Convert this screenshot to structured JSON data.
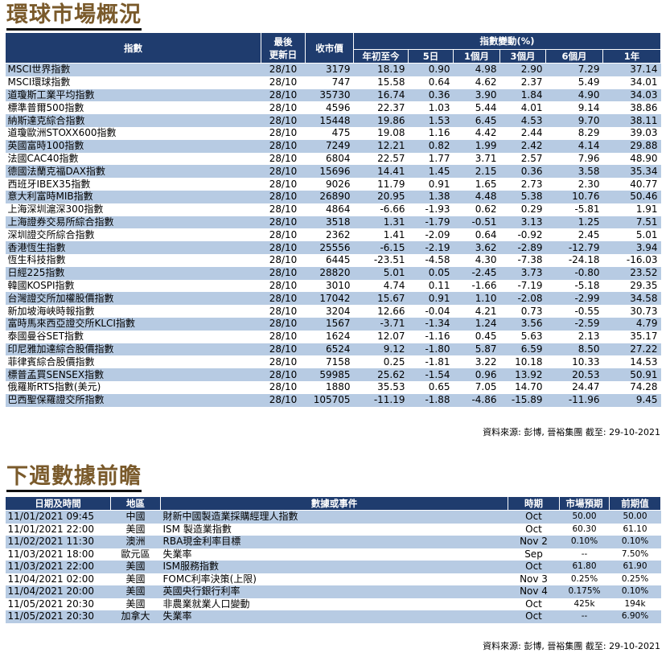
{
  "markets": {
    "title": "環球市場概況",
    "headers": {
      "index": "指數",
      "updated_line1": "最後",
      "updated_line2": "更新日",
      "close": "收市價",
      "change_group": "指數變動(%)",
      "ytd": "年初至今",
      "d5": "5日",
      "m1": "1個月",
      "m3": "3個月",
      "m6": "6個月",
      "y1": "1年"
    },
    "rows": [
      {
        "name": "MSCI世界指數",
        "date": "28/10",
        "close": "3179",
        "ytd": "18.19",
        "d5": "0.90",
        "m1": "4.98",
        "m3": "2.90",
        "m6": "7.29",
        "y1": "37.14"
      },
      {
        "name": "MSCI環球指數",
        "date": "28/10",
        "close": "747",
        "ytd": "15.58",
        "d5": "0.64",
        "m1": "4.62",
        "m3": "2.37",
        "m6": "5.49",
        "y1": "34.01"
      },
      {
        "name": "道瓊斯工業平均指數",
        "date": "28/10",
        "close": "35730",
        "ytd": "16.74",
        "d5": "0.36",
        "m1": "3.90",
        "m3": "1.84",
        "m6": "4.90",
        "y1": "34.03"
      },
      {
        "name": "標準普爾500指數",
        "date": "28/10",
        "close": "4596",
        "ytd": "22.37",
        "d5": "1.03",
        "m1": "5.44",
        "m3": "4.01",
        "m6": "9.14",
        "y1": "38.86"
      },
      {
        "name": "納斯達克綜合指數",
        "date": "28/10",
        "close": "15448",
        "ytd": "19.86",
        "d5": "1.53",
        "m1": "6.45",
        "m3": "4.53",
        "m6": "9.70",
        "y1": "38.11"
      },
      {
        "name": "道瓊歐洲STOXX600指數",
        "date": "28/10",
        "close": "475",
        "ytd": "19.08",
        "d5": "1.16",
        "m1": "4.42",
        "m3": "2.44",
        "m6": "8.29",
        "y1": "39.03"
      },
      {
        "name": "英國富時100指數",
        "date": "28/10",
        "close": "7249",
        "ytd": "12.21",
        "d5": "0.82",
        "m1": "1.99",
        "m3": "2.42",
        "m6": "4.14",
        "y1": "29.88"
      },
      {
        "name": "法國CAC40指數",
        "date": "28/10",
        "close": "6804",
        "ytd": "22.57",
        "d5": "1.77",
        "m1": "3.71",
        "m3": "2.57",
        "m6": "7.96",
        "y1": "48.90"
      },
      {
        "name": "德國法蘭克福DAX指數",
        "date": "28/10",
        "close": "15696",
        "ytd": "14.41",
        "d5": "1.45",
        "m1": "2.15",
        "m3": "0.36",
        "m6": "3.58",
        "y1": "35.34"
      },
      {
        "name": "西班牙IBEX35指數",
        "date": "28/10",
        "close": "9026",
        "ytd": "11.79",
        "d5": "0.91",
        "m1": "1.65",
        "m3": "2.73",
        "m6": "2.30",
        "y1": "40.77"
      },
      {
        "name": "意大利富時MIB指數",
        "date": "28/10",
        "close": "26890",
        "ytd": "20.95",
        "d5": "1.38",
        "m1": "4.48",
        "m3": "5.38",
        "m6": "10.76",
        "y1": "50.46"
      },
      {
        "name": "上海深圳滬深300指數",
        "date": "28/10",
        "close": "4864",
        "ytd": "-6.66",
        "d5": "-1.93",
        "m1": "0.62",
        "m3": "0.29",
        "m6": "-5.81",
        "y1": "1.91"
      },
      {
        "name": "上海證券交易所綜合指數",
        "date": "28/10",
        "close": "3518",
        "ytd": "1.31",
        "d5": "-1.79",
        "m1": "-0.51",
        "m3": "3.13",
        "m6": "1.25",
        "y1": "7.51"
      },
      {
        "name": "深圳證交所綜合指數",
        "date": "28/10",
        "close": "2362",
        "ytd": "1.41",
        "d5": "-2.09",
        "m1": "0.64",
        "m3": "-0.92",
        "m6": "2.45",
        "y1": "5.01"
      },
      {
        "name": "香港恆生指數",
        "date": "28/10",
        "close": "25556",
        "ytd": "-6.15",
        "d5": "-2.19",
        "m1": "3.62",
        "m3": "-2.89",
        "m6": "-12.79",
        "y1": "3.94"
      },
      {
        "name": "恆生科技指數",
        "date": "28/10",
        "close": "6445",
        "ytd": "-23.51",
        "d5": "-4.58",
        "m1": "4.30",
        "m3": "-7.38",
        "m6": "-24.18",
        "y1": "-16.03"
      },
      {
        "name": "日經225指數",
        "date": "28/10",
        "close": "28820",
        "ytd": "5.01",
        "d5": "0.05",
        "m1": "-2.45",
        "m3": "3.73",
        "m6": "-0.80",
        "y1": "23.52"
      },
      {
        "name": "韓國KOSPI指數",
        "date": "28/10",
        "close": "3010",
        "ytd": "4.74",
        "d5": "0.11",
        "m1": "-1.66",
        "m3": "-7.19",
        "m6": "-5.18",
        "y1": "29.35"
      },
      {
        "name": "台灣證交所加權股價指數",
        "date": "28/10",
        "close": "17042",
        "ytd": "15.67",
        "d5": "0.91",
        "m1": "1.10",
        "m3": "-2.08",
        "m6": "-2.99",
        "y1": "34.58"
      },
      {
        "name": "新加坡海峽時報指數",
        "date": "28/10",
        "close": "3204",
        "ytd": "12.66",
        "d5": "-0.04",
        "m1": "4.21",
        "m3": "0.73",
        "m6": "-0.55",
        "y1": "30.73"
      },
      {
        "name": "富時馬來西亞證交所KLCI指數",
        "date": "28/10",
        "close": "1567",
        "ytd": "-3.71",
        "d5": "-1.34",
        "m1": "1.24",
        "m3": "3.56",
        "m6": "-2.59",
        "y1": "4.79"
      },
      {
        "name": "泰國曼谷SET指數",
        "date": "28/10",
        "close": "1624",
        "ytd": "12.07",
        "d5": "-1.16",
        "m1": "0.45",
        "m3": "5.63",
        "m6": "2.13",
        "y1": "35.17"
      },
      {
        "name": "印尼雅加達綜合股價指數",
        "date": "28/10",
        "close": "6524",
        "ytd": "9.12",
        "d5": "-1.80",
        "m1": "5.87",
        "m3": "6.59",
        "m6": "8.50",
        "y1": "27.22"
      },
      {
        "name": "菲律賓綜合股價指數",
        "date": "28/10",
        "close": "7158",
        "ytd": "0.25",
        "d5": "-1.81",
        "m1": "3.22",
        "m3": "10.18",
        "m6": "10.33",
        "y1": "14.53"
      },
      {
        "name": "標普孟買SENSEX指數",
        "date": "28/10",
        "close": "59985",
        "ytd": "25.62",
        "d5": "-1.54",
        "m1": "0.96",
        "m3": "13.92",
        "m6": "20.53",
        "y1": "50.91"
      },
      {
        "name": "俄羅斯RTS指數(美元)",
        "date": "28/10",
        "close": "1880",
        "ytd": "35.53",
        "d5": "0.65",
        "m1": "7.05",
        "m3": "14.70",
        "m6": "24.47",
        "y1": "74.28"
      },
      {
        "name": "巴西聖保羅證交所指數",
        "date": "28/10",
        "close": "105705",
        "ytd": "-11.19",
        "d5": "-1.88",
        "m1": "-4.86",
        "m3": "-15.89",
        "m6": "-11.96",
        "y1": "9.45"
      }
    ],
    "source": "資料來源: 彭博, 晉裕集團 截至: 29-10-2021"
  },
  "events": {
    "title": "下週數據前瞻",
    "headers": {
      "datetime": "日期及時間",
      "region": "地區",
      "event": "數據或事件",
      "period": "時期",
      "forecast": "市場預期",
      "previous": "前期值"
    },
    "rows": [
      {
        "datetime": "11/01/2021 09:45",
        "region": "中國",
        "event": "財新中國製造業採購經理人指數",
        "period": "Oct",
        "forecast": "50.00",
        "previous": "50.00"
      },
      {
        "datetime": "11/01/2021 22:00",
        "region": "美國",
        "event": "ISM 製造業指數",
        "period": "Oct",
        "forecast": "60.30",
        "previous": "61.10"
      },
      {
        "datetime": "11/02/2021 11:30",
        "region": "澳洲",
        "event": "RBA現金利率目標",
        "period": "Nov 2",
        "forecast": "0.10%",
        "previous": "0.10%"
      },
      {
        "datetime": "11/03/2021 18:00",
        "region": "歐元區",
        "event": "失業率",
        "period": "Sep",
        "forecast": "--",
        "previous": "7.50%"
      },
      {
        "datetime": "11/03/2021 22:00",
        "region": "美國",
        "event": "ISM服務指數",
        "period": "Oct",
        "forecast": "61.80",
        "previous": "61.90"
      },
      {
        "datetime": "11/04/2021 02:00",
        "region": "美國",
        "event": "FOMC利率決策(上限)",
        "period": "Nov 3",
        "forecast": "0.25%",
        "previous": "0.25%"
      },
      {
        "datetime": "11/04/2021 20:00",
        "region": "美國",
        "event": "英國央行銀行利率",
        "period": "Nov 4",
        "forecast": "0.175%",
        "previous": "0.10%"
      },
      {
        "datetime": "11/05/2021 20:30",
        "region": "美國",
        "event": "非農業就業人口變動",
        "period": "Oct",
        "forecast": "425k",
        "previous": "194k"
      },
      {
        "datetime": "11/05/2021 20:30",
        "region": "加拿大",
        "event": "失業率",
        "period": "Oct",
        "forecast": "--",
        "previous": "6.90%"
      }
    ],
    "source": "資料來源: 彭博, 晉裕集團 截至: 29-10-2021"
  },
  "colors": {
    "header_bg": "#1f3c6e",
    "band_bg": "#b7cbe3",
    "title_color": "#7a5a2b"
  }
}
